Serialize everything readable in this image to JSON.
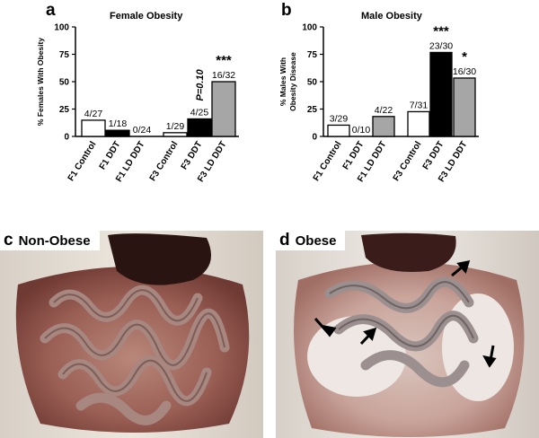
{
  "panels": {
    "a": {
      "letter": "a",
      "title": "Female Obesity"
    },
    "b": {
      "letter": "b",
      "title": "Male Obesity"
    },
    "c": {
      "letter": "c",
      "caption": "Non-Obese"
    },
    "d": {
      "letter": "d",
      "caption": "Obese"
    }
  },
  "colors": {
    "control": "#ffffff",
    "ddt": "#000000",
    "ld_ddt": "#a6a6a6",
    "stroke": "#000000"
  },
  "chart_data": [
    {
      "type": "bar",
      "title": "Female Obesity",
      "ylabel": "% Females With Obesity",
      "xlabel": "",
      "ylim": [
        0,
        100
      ],
      "yticks": [
        "0",
        "25",
        "50",
        "75",
        "100"
      ],
      "categories": [
        "F1 Control",
        "F1 DDT",
        "F1 LD DDT",
        "F3 Control",
        "F3 DDT",
        "F3 LD DDT"
      ],
      "values": [
        14.8,
        5.6,
        0,
        3.4,
        16.0,
        50.0
      ],
      "bar_labels": [
        "4/27",
        "1/18",
        "0/24",
        "1/29",
        "4/25",
        "16/32"
      ],
      "significance": [
        "",
        "",
        "",
        "",
        "P=0.10",
        "***"
      ],
      "fills": [
        "control",
        "ddt",
        "ld_ddt",
        "control",
        "ddt",
        "ld_ddt"
      ]
    },
    {
      "type": "bar",
      "title": "Male Obesity",
      "ylabel": "% Males With Obesity Disease",
      "xlabel": "",
      "ylim": [
        0,
        100
      ],
      "yticks": [
        "0",
        "25",
        "50",
        "75",
        "100"
      ],
      "categories": [
        "F1 Control",
        "F1 DDT",
        "F1 LD DDT",
        "F3 Control",
        "F3 DDT",
        "F3 LD DDT"
      ],
      "values": [
        10.3,
        0,
        18.2,
        22.6,
        76.7,
        53.3
      ],
      "bar_labels": [
        "3/29",
        "0/10",
        "4/22",
        "7/31",
        "23/30",
        "16/30"
      ],
      "significance": [
        "",
        "",
        "",
        "",
        "***",
        "*"
      ],
      "fills": [
        "control",
        "ddt",
        "ld_ddt",
        "control",
        "ddt",
        "ld_ddt"
      ]
    }
  ]
}
